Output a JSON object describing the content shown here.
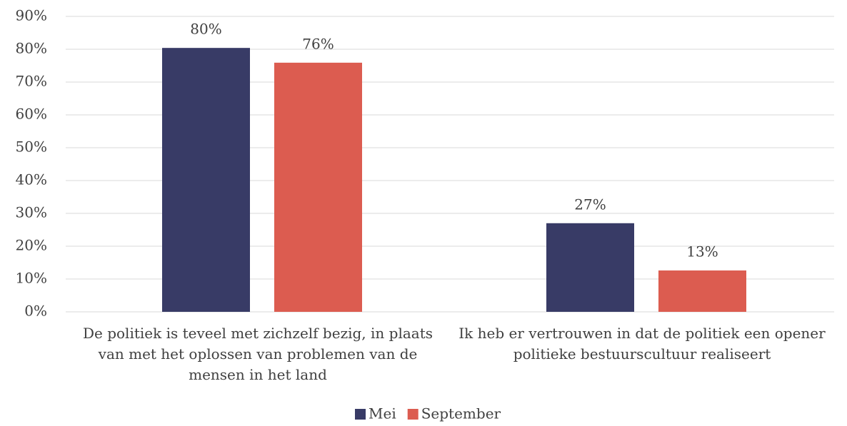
{
  "chart_data": {
    "type": "bar",
    "categories": [
      "De politiek is teveel met zichzelf bezig, in plaats van met het oplossen van problemen van de mensen in het land",
      "Ik heb er vertrouwen in dat de politiek een opener politieke bestuurscultuur realiseert"
    ],
    "series": [
      {
        "name": "Mei",
        "color": "#383b66",
        "values": [
          80.4,
          27
        ],
        "value_labels": [
          "80%",
          "27%"
        ]
      },
      {
        "name": "September",
        "color": "#dc5c50",
        "values": [
          75.9,
          12.6
        ],
        "value_labels": [
          "76%",
          "13%"
        ]
      }
    ],
    "ylim": [
      0,
      90
    ],
    "yticks": [
      {
        "value": 0,
        "label": "0%"
      },
      {
        "value": 10,
        "label": "10%"
      },
      {
        "value": 20,
        "label": "20%"
      },
      {
        "value": 30,
        "label": "30%"
      },
      {
        "value": 40,
        "label": "40%"
      },
      {
        "value": 50,
        "label": "50%"
      },
      {
        "value": 60,
        "label": "60%"
      },
      {
        "value": 70,
        "label": "70%"
      },
      {
        "value": 80,
        "label": "80%"
      },
      {
        "value": 90,
        "label": "90%"
      }
    ],
    "grid": true,
    "legend": "bottom"
  }
}
